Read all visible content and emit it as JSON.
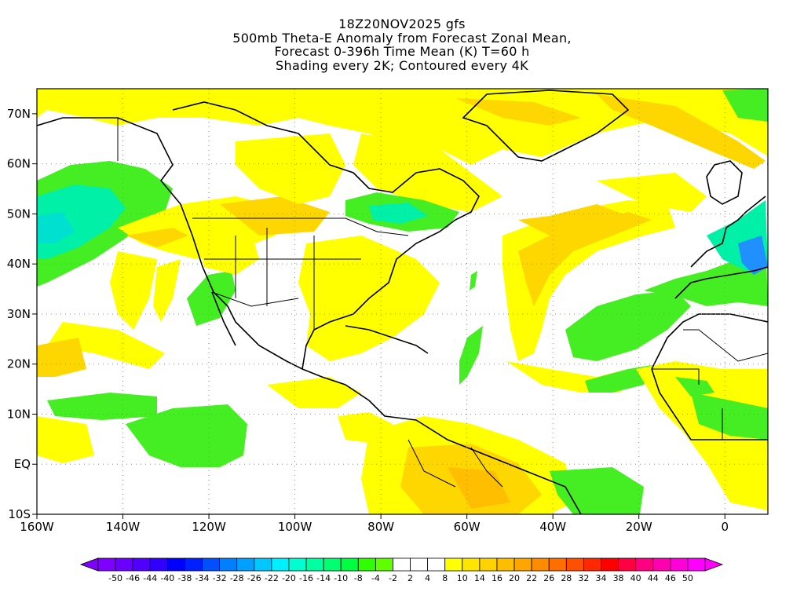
{
  "title": {
    "line1": "18Z20NOV2025 gfs",
    "line2": "500mb Theta-E Anomaly from Forecast Zonal Mean,",
    "line3": "Forecast 0-396h Time Mean (K) T=60 h",
    "line4": "Shading every 2K; Contoured every 4K"
  },
  "axes": {
    "lon_labels": [
      "160W",
      "140W",
      "120W",
      "100W",
      "80W",
      "60W",
      "40W",
      "20W",
      "0"
    ],
    "lon_values": [
      -160,
      -140,
      -120,
      -100,
      -80,
      -60,
      -40,
      -20,
      0
    ],
    "lat_labels": [
      "70N",
      "60N",
      "50N",
      "40N",
      "30N",
      "20N",
      "10N",
      "EQ",
      "10S"
    ],
    "lat_values": [
      70,
      60,
      50,
      40,
      30,
      20,
      10,
      0,
      -10
    ],
    "lon_range": [
      -160,
      10
    ],
    "lat_range": [
      -10,
      75
    ],
    "grid": "dotted"
  },
  "colorbar": {
    "labels": [
      "-50",
      "-46",
      "-44",
      "-40",
      "-38",
      "-34",
      "-32",
      "-28",
      "-26",
      "-22",
      "-20",
      "-16",
      "-14",
      "-10",
      "-8",
      "-4",
      "-2",
      "2",
      "4",
      "8",
      "10",
      "14",
      "16",
      "20",
      "22",
      "26",
      "28",
      "32",
      "34",
      "38",
      "40",
      "44",
      "46",
      "50"
    ],
    "colors": [
      "#8000ff",
      "#6a00ff",
      "#5000ff",
      "#3000ff",
      "#0000ff",
      "#0020ff",
      "#0050ff",
      "#0080ff",
      "#00a0ff",
      "#00c8ff",
      "#00f0ff",
      "#00ffd0",
      "#00ffa0",
      "#00ff70",
      "#00ff40",
      "#30ff00",
      "#60ff00",
      "#ffffff",
      "#ffffff",
      "#ffffff",
      "#ffff00",
      "#ffe600",
      "#ffd200",
      "#ffbe00",
      "#ffa500",
      "#ff8c00",
      "#ff6e00",
      "#ff5000",
      "#ff2800",
      "#ff0000",
      "#ff0040",
      "#ff0080",
      "#ff00b0",
      "#ff00d8",
      "#ff00ff"
    ]
  },
  "colors": {
    "yellow": "#ffff00",
    "gold": "#ffd700",
    "orange": "#ffbe00",
    "green": "#44ee22",
    "teal": "#00f0a8",
    "cyan": "#00e0d0",
    "blue": "#2090ff"
  }
}
